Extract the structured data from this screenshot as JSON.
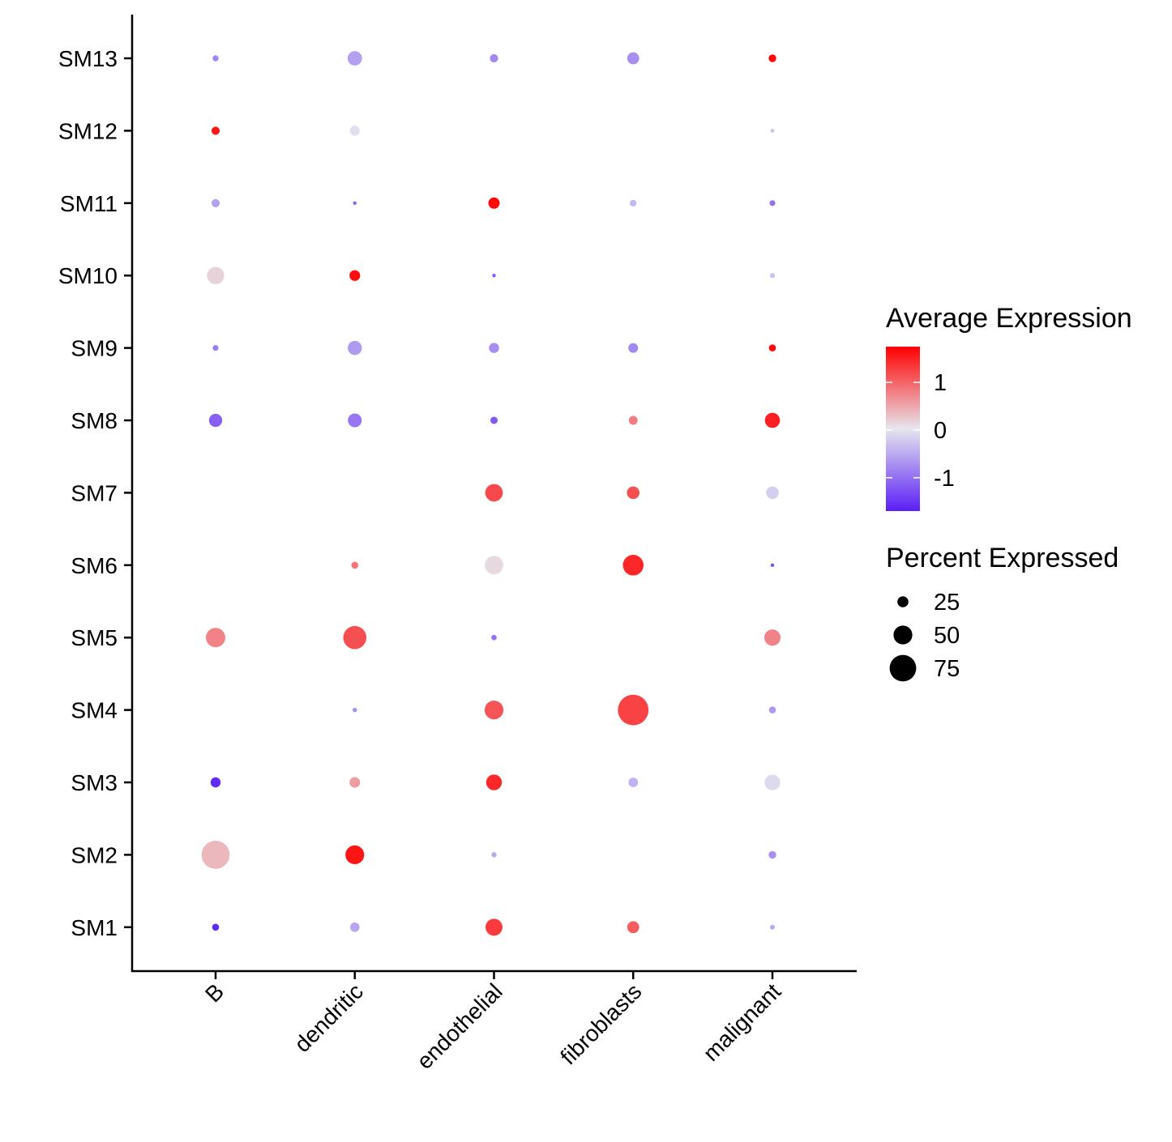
{
  "chart_data": {
    "type": "dotplot",
    "title": "",
    "xlabel": "",
    "ylabel": "",
    "categories": [
      "B",
      "dendritic",
      "endothelial",
      "fibroblasts",
      "malignant"
    ],
    "features": [
      "SM1",
      "SM2",
      "SM3",
      "SM4",
      "SM5",
      "SM6",
      "SM7",
      "SM8",
      "SM9",
      "SM10",
      "SM11",
      "SM12",
      "SM13"
    ],
    "color_legend": {
      "title": "Average Expression",
      "ticks": [
        1,
        0,
        -1
      ],
      "tick_labels": [
        "1",
        "0",
        "-1"
      ],
      "range": [
        -1.7,
        1.75
      ],
      "low_color": "#5a1ef5",
      "mid_color": "#e6e6ee",
      "high_color": "#ff0000"
    },
    "size_legend": {
      "title": "Percent Expressed",
      "values": [
        25,
        50,
        75
      ],
      "labels": [
        "25",
        "50",
        "75"
      ]
    },
    "points": [
      {
        "feature": "SM13",
        "category": "B",
        "pct": 9,
        "avg": -0.8
      },
      {
        "feature": "SM13",
        "category": "dendritic",
        "pct": 36,
        "avg": -0.6
      },
      {
        "feature": "SM13",
        "category": "endothelial",
        "pct": 16,
        "avg": -0.8
      },
      {
        "feature": "SM13",
        "category": "fibroblasts",
        "pct": 28,
        "avg": -0.75
      },
      {
        "feature": "SM13",
        "category": "malignant",
        "pct": 14,
        "avg": 1.7
      },
      {
        "feature": "SM12",
        "category": "B",
        "pct": 16,
        "avg": 1.6
      },
      {
        "feature": "SM12",
        "category": "dendritic",
        "pct": 22,
        "avg": -0.05
      },
      {
        "feature": "SM12",
        "category": "malignant",
        "pct": 2,
        "avg": -0.3
      },
      {
        "feature": "SM11",
        "category": "B",
        "pct": 16,
        "avg": -0.6
      },
      {
        "feature": "SM11",
        "category": "dendritic",
        "pct": 1,
        "avg": -1.1
      },
      {
        "feature": "SM11",
        "category": "endothelial",
        "pct": 26,
        "avg": 1.7
      },
      {
        "feature": "SM11",
        "category": "fibroblasts",
        "pct": 11,
        "avg": -0.4
      },
      {
        "feature": "SM11",
        "category": "malignant",
        "pct": 8,
        "avg": -1.0
      },
      {
        "feature": "SM10",
        "category": "B",
        "pct": 45,
        "avg": 0.15
      },
      {
        "feature": "SM10",
        "category": "dendritic",
        "pct": 24,
        "avg": 1.65
      },
      {
        "feature": "SM10",
        "category": "endothelial",
        "pct": 1,
        "avg": -1.2
      },
      {
        "feature": "SM10",
        "category": "malignant",
        "pct": 6,
        "avg": -0.3
      },
      {
        "feature": "SM9",
        "category": "B",
        "pct": 8,
        "avg": -0.9
      },
      {
        "feature": "SM9",
        "category": "dendritic",
        "pct": 35,
        "avg": -0.65
      },
      {
        "feature": "SM9",
        "category": "endothelial",
        "pct": 22,
        "avg": -0.75
      },
      {
        "feature": "SM9",
        "category": "fibroblasts",
        "pct": 21,
        "avg": -0.8
      },
      {
        "feature": "SM9",
        "category": "malignant",
        "pct": 12,
        "avg": 1.7
      },
      {
        "feature": "SM8",
        "category": "B",
        "pct": 32,
        "avg": -1.15
      },
      {
        "feature": "SM8",
        "category": "dendritic",
        "pct": 34,
        "avg": -0.95
      },
      {
        "feature": "SM8",
        "category": "endothelial",
        "pct": 13,
        "avg": -1.2
      },
      {
        "feature": "SM8",
        "category": "fibroblasts",
        "pct": 18,
        "avg": 0.8
      },
      {
        "feature": "SM8",
        "category": "malignant",
        "pct": 38,
        "avg": 1.5
      },
      {
        "feature": "SM7",
        "category": "endothelial",
        "pct": 46,
        "avg": 1.2
      },
      {
        "feature": "SM7",
        "category": "fibroblasts",
        "pct": 30,
        "avg": 1.15
      },
      {
        "feature": "SM7",
        "category": "malignant",
        "pct": 30,
        "avg": -0.2
      },
      {
        "feature": "SM6",
        "category": "dendritic",
        "pct": 12,
        "avg": 0.85
      },
      {
        "feature": "SM6",
        "category": "endothelial",
        "pct": 49,
        "avg": 0.1
      },
      {
        "feature": "SM6",
        "category": "fibroblasts",
        "pct": 56,
        "avg": 1.45
      },
      {
        "feature": "SM6",
        "category": "malignant",
        "pct": 1,
        "avg": -1.3
      },
      {
        "feature": "SM5",
        "category": "B",
        "pct": 52,
        "avg": 0.75
      },
      {
        "feature": "SM5",
        "category": "dendritic",
        "pct": 64,
        "avg": 1.15
      },
      {
        "feature": "SM5",
        "category": "endothelial",
        "pct": 7,
        "avg": -1.0
      },
      {
        "feature": "SM5",
        "category": "malignant",
        "pct": 42,
        "avg": 0.75
      },
      {
        "feature": "SM4",
        "category": "dendritic",
        "pct": 4,
        "avg": -0.75
      },
      {
        "feature": "SM4",
        "category": "endothelial",
        "pct": 50,
        "avg": 1.1
      },
      {
        "feature": "SM4",
        "category": "fibroblasts",
        "pct": 88,
        "avg": 1.25
      },
      {
        "feature": "SM4",
        "category": "malignant",
        "pct": 12,
        "avg": -0.65
      },
      {
        "feature": "SM3",
        "category": "B",
        "pct": 22,
        "avg": -1.6
      },
      {
        "feature": "SM3",
        "category": "dendritic",
        "pct": 24,
        "avg": 0.55
      },
      {
        "feature": "SM3",
        "category": "endothelial",
        "pct": 40,
        "avg": 1.45
      },
      {
        "feature": "SM3",
        "category": "fibroblasts",
        "pct": 20,
        "avg": -0.45
      },
      {
        "feature": "SM3",
        "category": "malignant",
        "pct": 40,
        "avg": -0.1
      },
      {
        "feature": "SM2",
        "category": "B",
        "pct": 80,
        "avg": 0.35
      },
      {
        "feature": "SM2",
        "category": "dendritic",
        "pct": 50,
        "avg": 1.6
      },
      {
        "feature": "SM2",
        "category": "endothelial",
        "pct": 6,
        "avg": -0.55
      },
      {
        "feature": "SM2",
        "category": "malignant",
        "pct": 14,
        "avg": -0.75
      },
      {
        "feature": "SM1",
        "category": "B",
        "pct": 12,
        "avg": -1.6
      },
      {
        "feature": "SM1",
        "category": "dendritic",
        "pct": 20,
        "avg": -0.55
      },
      {
        "feature": "SM1",
        "category": "endothelial",
        "pct": 44,
        "avg": 1.3
      },
      {
        "feature": "SM1",
        "category": "fibroblasts",
        "pct": 28,
        "avg": 1.05
      },
      {
        "feature": "SM1",
        "category": "malignant",
        "pct": 5,
        "avg": -0.55
      }
    ]
  }
}
